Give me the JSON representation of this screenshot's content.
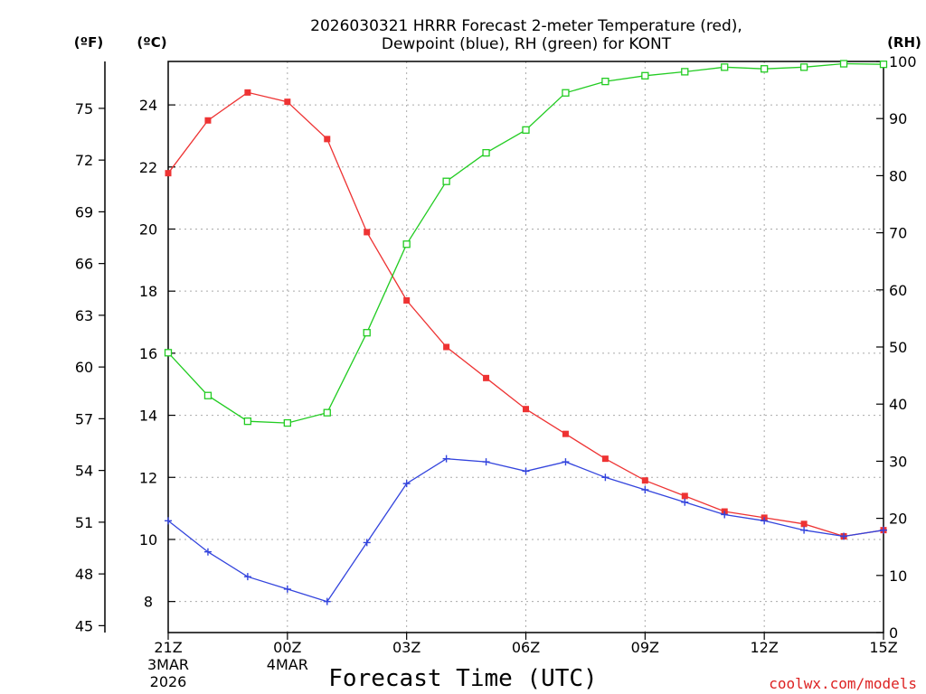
{
  "chart_data": {
    "type": "line",
    "title": "2026030321 HRRR Forecast 2-meter Temperature (red),",
    "title_line2": "Dewpoint (blue), RH (green) for KONT",
    "xlabel": "Forecast Time (UTC)",
    "credit": "coolwx.com/models",
    "unit_f": "(ºF)",
    "unit_c": "(ºC)",
    "unit_rh": "(RH)",
    "hours": [
      0,
      1,
      2,
      3,
      4,
      5,
      6,
      7,
      8,
      9,
      10,
      11,
      12,
      13,
      14,
      15,
      16,
      17,
      18
    ],
    "x_ticks": [
      {
        "h": 0,
        "label": "21Z",
        "sub1": "3MAR",
        "sub2": "2026"
      },
      {
        "h": 3,
        "label": "00Z",
        "sub1": "4MAR",
        "sub2": ""
      },
      {
        "h": 6,
        "label": "03Z",
        "sub1": "",
        "sub2": ""
      },
      {
        "h": 9,
        "label": "06Z",
        "sub1": "",
        "sub2": ""
      },
      {
        "h": 12,
        "label": "09Z",
        "sub1": "",
        "sub2": ""
      },
      {
        "h": 15,
        "label": "12Z",
        "sub1": "",
        "sub2": ""
      },
      {
        "h": 18,
        "label": "15Z",
        "sub1": "",
        "sub2": ""
      }
    ],
    "xlim": [
      0,
      18
    ],
    "celsius_ylim": [
      7.0,
      25.4
    ],
    "celsius_ticks": [
      8,
      10,
      12,
      14,
      16,
      18,
      20,
      22,
      24
    ],
    "fahrenheit_ticks": [
      45,
      48,
      51,
      54,
      57,
      60,
      63,
      66,
      69,
      72,
      75
    ],
    "rh_ylim": [
      0,
      100
    ],
    "rh_ticks": [
      0,
      10,
      20,
      30,
      40,
      50,
      60,
      70,
      80,
      90,
      100
    ],
    "series": [
      {
        "name": "Temperature",
        "axis": "celsius",
        "color": "#ee3333",
        "marker": "filled-square",
        "values": [
          21.8,
          23.5,
          24.4,
          24.1,
          22.9,
          19.9,
          17.7,
          16.2,
          15.2,
          14.2,
          13.4,
          12.6,
          11.9,
          11.4,
          10.9,
          10.7,
          10.5,
          10.1,
          10.3
        ]
      },
      {
        "name": "Dewpoint",
        "axis": "celsius",
        "color": "#3344dd",
        "marker": "plus",
        "values": [
          10.6,
          9.6,
          8.8,
          8.4,
          8.0,
          9.9,
          11.8,
          12.6,
          12.5,
          12.2,
          12.5,
          12.0,
          11.6,
          11.2,
          10.8,
          10.6,
          10.3,
          10.1,
          10.3
        ]
      },
      {
        "name": "RH",
        "axis": "rh",
        "color": "#22cc22",
        "marker": "open-square",
        "values": [
          49,
          41.5,
          37,
          36.7,
          38.5,
          52.5,
          68,
          79,
          84,
          88,
          94.5,
          96.5,
          97.5,
          98.2,
          99,
          98.7,
          99,
          99.6,
          99.5
        ]
      }
    ]
  }
}
